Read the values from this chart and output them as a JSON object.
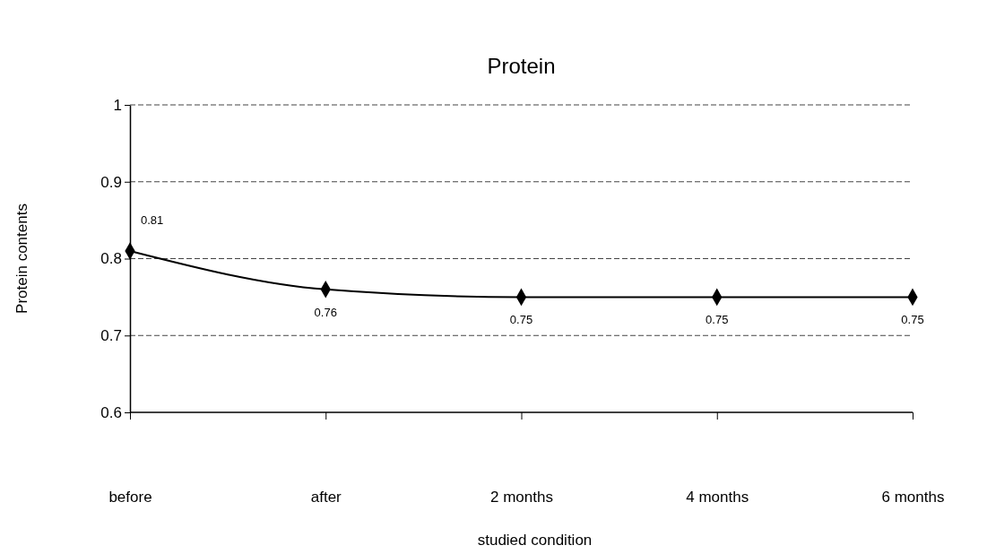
{
  "chart_data": {
    "type": "line",
    "title": "Protein",
    "xlabel": "studied condition",
    "ylabel": "Protein contents",
    "categories": [
      "before",
      "after",
      "2 months",
      "4 months",
      "6 months"
    ],
    "series": [
      {
        "color": "#000000",
        "values": [
          0.81,
          0.76,
          0.75,
          0.75,
          0.75
        ]
      }
    ],
    "ylim": [
      0.6,
      1
    ],
    "yticks": [
      0.6,
      0.7,
      0.8,
      0.9,
      1
    ],
    "grid": "y",
    "marker": "diamond",
    "line_style": "solid",
    "data_labels": true
  }
}
